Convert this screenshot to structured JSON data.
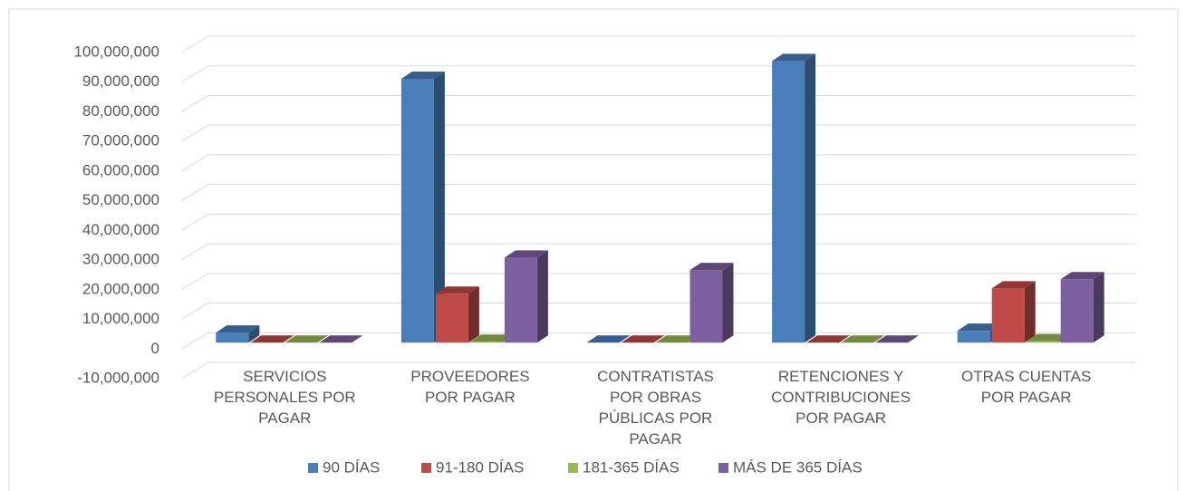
{
  "chart_data": {
    "type": "bar3d",
    "categories": [
      "SERVICIOS PERSONALES POR PAGAR",
      "PROVEEDORES POR PAGAR",
      "CONTRATISTAS POR OBRAS PÚBLICAS POR PAGAR",
      "RETENCIONES Y CONTRIBUCIONES POR PAGAR",
      "OTRAS CUENTAS POR PAGAR"
    ],
    "series": [
      {
        "name": "90 DÍAS",
        "color": "#4a7ebb",
        "values": [
          3400000,
          89000000,
          0,
          95000000,
          4000000
        ]
      },
      {
        "name": "91-180 DÍAS",
        "color": "#be4b48",
        "values": [
          0,
          16500000,
          0,
          0,
          18300000
        ]
      },
      {
        "name": "181-365 DÍAS",
        "color": "#98b954",
        "values": [
          0,
          300000,
          0,
          0,
          500000
        ]
      },
      {
        "name": "MÁS DE 365 DÍAS",
        "color": "#7d60a0",
        "values": [
          0,
          28700000,
          24500000,
          0,
          21400000
        ]
      }
    ],
    "ylim": [
      -10000000,
      100000000
    ],
    "yticks": [
      {
        "value": -10000000,
        "label": "-10,000,000"
      },
      0,
      {
        "value": 10000000,
        "label": "10,000,000"
      },
      {
        "value": 20000000,
        "label": "20,000,000"
      },
      {
        "value": 30000000,
        "label": "30,000,000"
      },
      {
        "value": 40000000,
        "label": "40,000,000"
      },
      {
        "value": 50000000,
        "label": "50,000,000"
      },
      {
        "value": 60000000,
        "label": "60,000,000"
      },
      {
        "value": 70000000,
        "label": "70,000,000"
      },
      {
        "value": 80000000,
        "label": "80,000,000"
      },
      {
        "value": 90000000,
        "label": "90,000,000"
      },
      {
        "value": 100000000,
        "label": "100,000,000"
      }
    ],
    "grid": true,
    "legend": "bottom"
  }
}
